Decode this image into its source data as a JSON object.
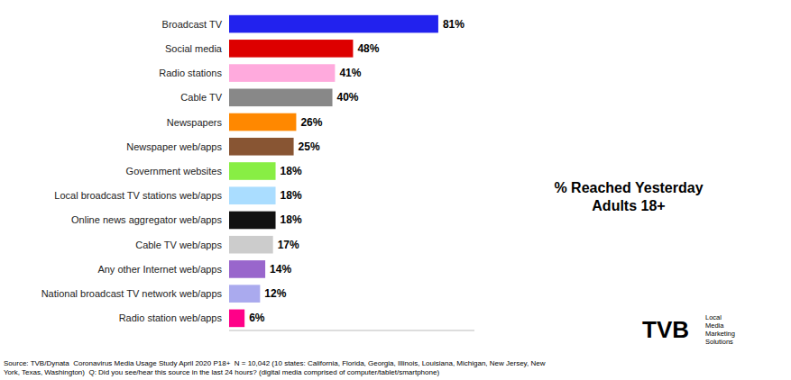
{
  "chart_data": {
    "type": "bar",
    "orientation": "horizontal",
    "categories": [
      "Broadcast TV",
      "Social media",
      "Radio stations",
      "Cable TV",
      "Newspapers",
      "Newspaper web/apps",
      "Government websites",
      "Local broadcast TV stations web/apps",
      "Online news aggregator web/apps",
      "Cable TV web/apps",
      "Any other Internet web/apps",
      "National broadcast TV network web/apps",
      "Radio station web/apps"
    ],
    "values": [
      81,
      48,
      41,
      40,
      26,
      25,
      18,
      18,
      18,
      17,
      14,
      12,
      6
    ],
    "value_labels": [
      "81%",
      "48%",
      "41%",
      "40%",
      "26%",
      "25%",
      "18%",
      "18%",
      "18%",
      "17%",
      "14%",
      "12%",
      "6%"
    ],
    "colors": [
      "#2222ee",
      "#dd0000",
      "#ffaadd",
      "#888888",
      "#ff8800",
      "#885533",
      "#88ee44",
      "#aaddff",
      "#111111",
      "#cccccc",
      "#9966cc",
      "#aaaaee",
      "#ff0088"
    ],
    "xlim": [
      0,
      95
    ],
    "xticks": [],
    "grid": false,
    "data_labels": true,
    "tick_labels": "y",
    "annotations": [
      "% Reached Yesterday\nAdults 18+",
      "Source: TVB/Dynata  Coronavirus Media Usage Study April 2020 P18+  N = 10,042 (10 states: California, Florida, Georgia, Illinois, Louisiana, Michigan, New Jersey, New\nYork, Texas, Washington)  Q: Did you see/hear this source in the last 24 hours? (digital media comprised of computer/tablet/smartphone)",
      "TVB",
      "Local",
      "Media",
      "Marketing",
      "Solutions"
    ]
  }
}
